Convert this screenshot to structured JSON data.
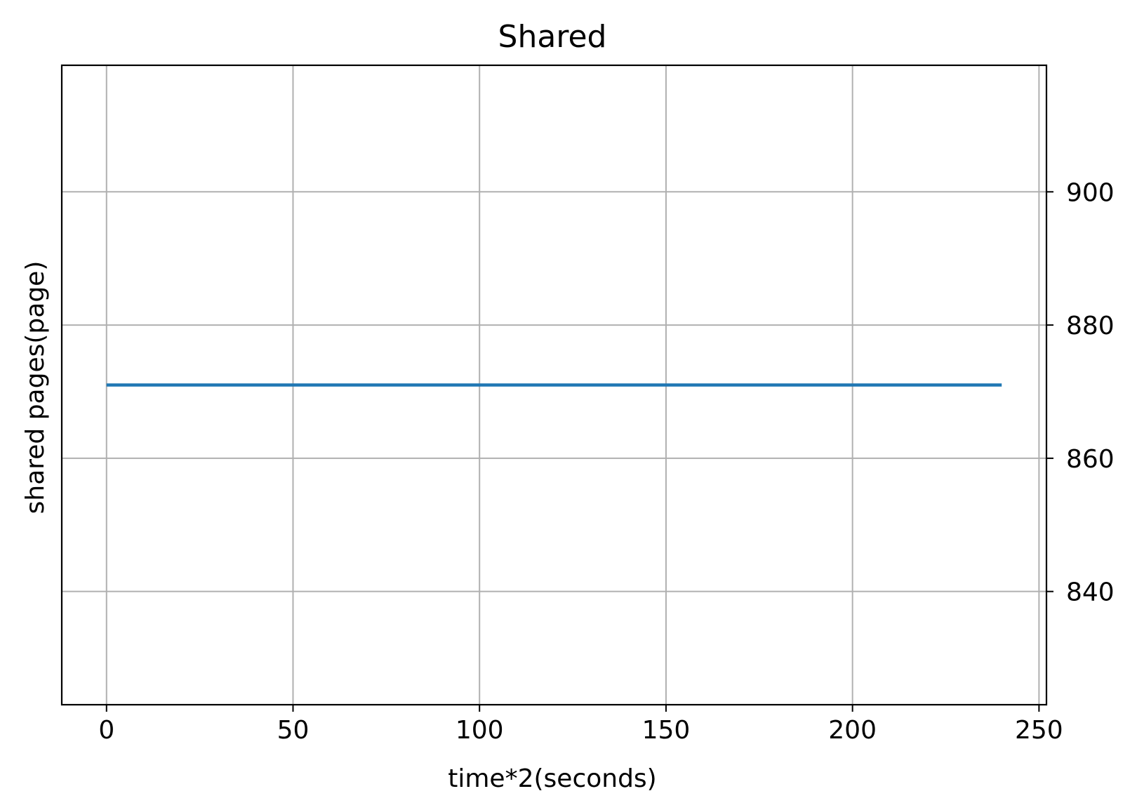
{
  "chart_data": {
    "type": "line",
    "title": "Shared",
    "xlabel": "time*2(seconds)",
    "ylabel": "shared pages(page)",
    "xlim": [
      -12,
      252
    ],
    "ylim": [
      823,
      919
    ],
    "xticks": [
      0,
      50,
      100,
      150,
      200,
      250
    ],
    "yticks": [
      840,
      860,
      880,
      900
    ],
    "y_axis_side": "right",
    "grid": true,
    "series": [
      {
        "x": [
          0,
          240
        ],
        "y": [
          871,
          871
        ],
        "color": "#1f77b4"
      }
    ]
  }
}
